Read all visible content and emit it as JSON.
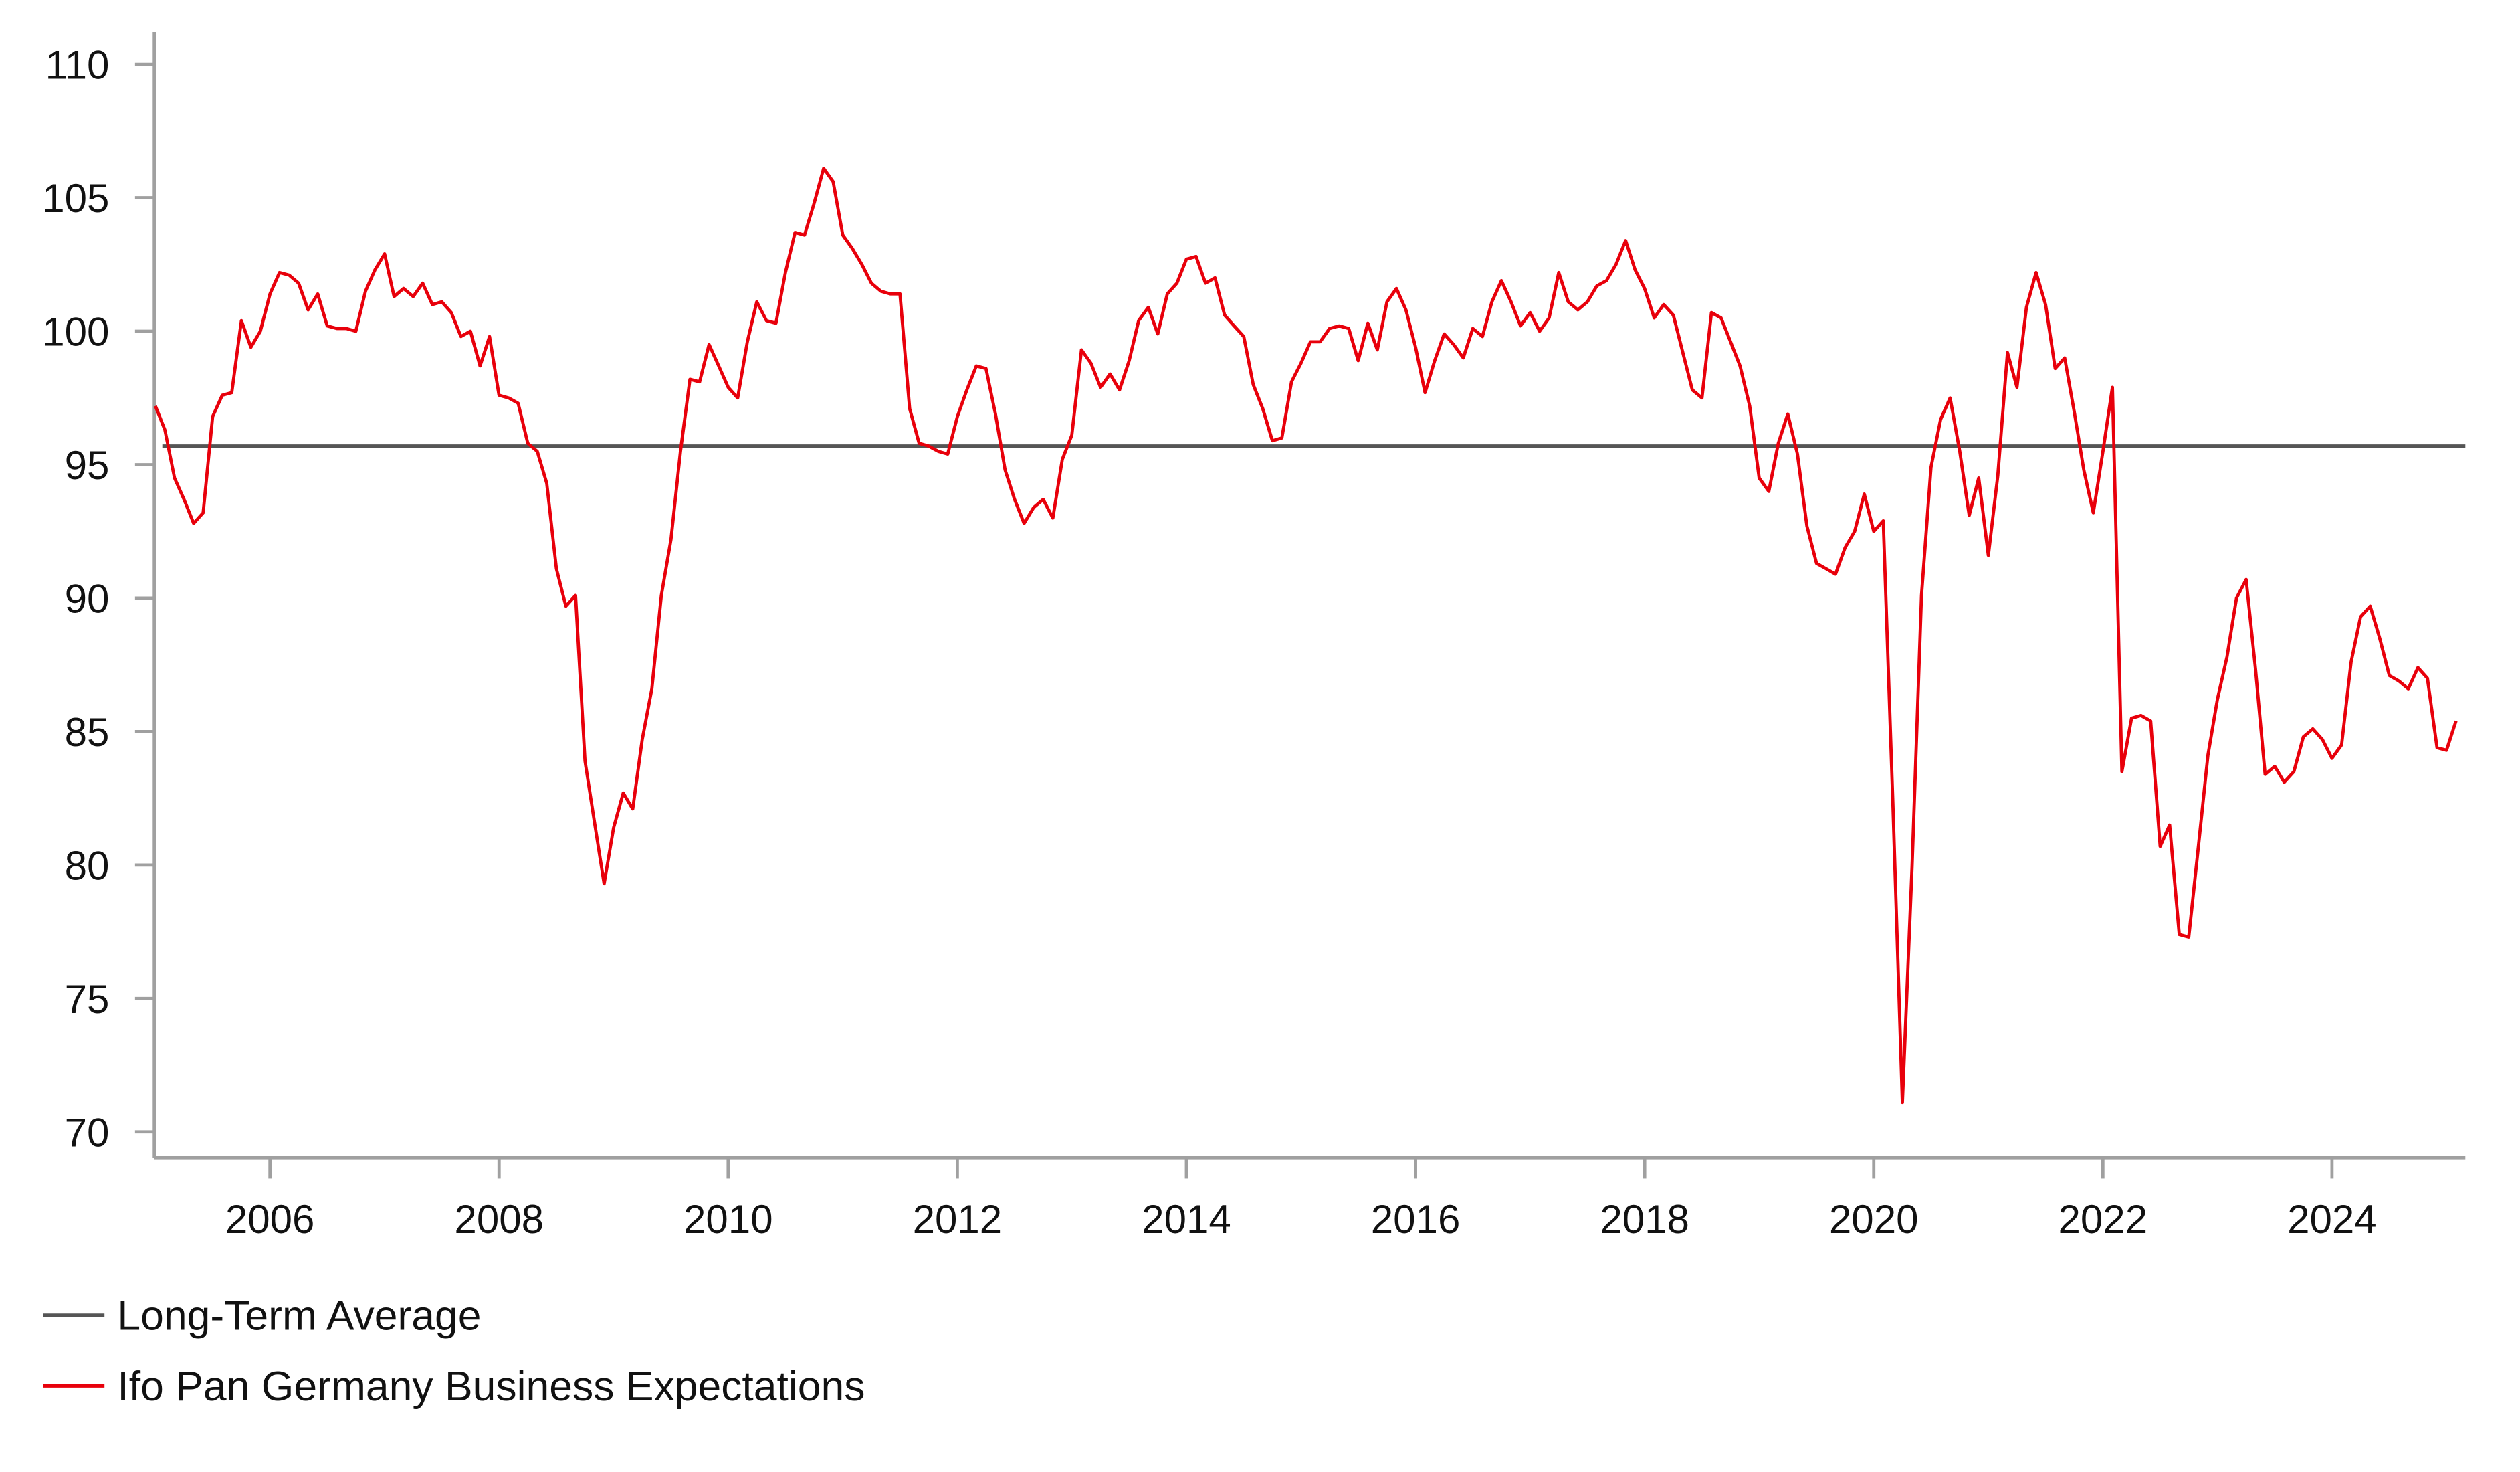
{
  "chart_data": {
    "type": "line",
    "title": "",
    "xlabel": "",
    "ylabel": "",
    "ylim": [
      70,
      110
    ],
    "xlim": [
      2005.0,
      2025.15
    ],
    "yticks": [
      "70",
      "75",
      "80",
      "85",
      "90",
      "95",
      "100",
      "105",
      "110"
    ],
    "xticks": [
      "2006",
      "2008",
      "2010",
      "2012",
      "2014",
      "2016",
      "2018",
      "2020",
      "2022",
      "2024"
    ],
    "grid": false,
    "legend_placement": "bottom-left",
    "series": [
      {
        "name": "Long-Term Average",
        "color": "#555555",
        "value": 95.7
      },
      {
        "name": "Ifo Pan Germany Business Expectations",
        "color": "#e8000b",
        "start": "2005-01",
        "frequency": "monthly",
        "values": [
          97.2,
          96.3,
          94.5,
          93.7,
          92.8,
          93.2,
          96.8,
          97.6,
          97.7,
          100.4,
          99.4,
          100.0,
          101.4,
          102.2,
          102.1,
          101.8,
          100.8,
          101.4,
          100.2,
          100.1,
          100.1,
          100.0,
          101.5,
          102.3,
          102.9,
          101.3,
          101.6,
          101.3,
          101.8,
          101.0,
          101.1,
          100.7,
          99.8,
          100.0,
          98.7,
          99.8,
          97.6,
          97.5,
          97.3,
          95.8,
          95.5,
          94.3,
          91.1,
          89.7,
          90.1,
          83.9,
          81.6,
          79.3,
          81.4,
          82.7,
          82.1,
          84.7,
          86.6,
          90.1,
          92.2,
          95.5,
          98.2,
          98.1,
          99.5,
          98.7,
          97.9,
          97.5,
          99.6,
          101.1,
          100.4,
          100.3,
          102.2,
          103.7,
          103.6,
          104.8,
          106.1,
          105.6,
          103.6,
          103.1,
          102.5,
          101.8,
          101.5,
          101.4,
          101.4,
          97.1,
          95.8,
          95.7,
          95.5,
          95.4,
          96.8,
          97.8,
          98.7,
          98.6,
          96.9,
          94.8,
          93.7,
          92.8,
          93.4,
          93.7,
          93.0,
          95.2,
          96.1,
          99.3,
          98.8,
          97.9,
          98.4,
          97.8,
          98.9,
          100.4,
          100.9,
          99.9,
          101.4,
          101.8,
          102.7,
          102.8,
          101.8,
          102.0,
          100.6,
          100.2,
          99.8,
          98.0,
          97.1,
          95.9,
          96.0,
          98.1,
          98.8,
          99.6,
          99.6,
          100.1,
          100.2,
          100.1,
          98.9,
          100.3,
          99.3,
          101.1,
          101.6,
          100.8,
          99.4,
          97.7,
          98.9,
          99.9,
          99.5,
          99.0,
          100.1,
          99.8,
          101.1,
          101.9,
          101.1,
          100.2,
          100.7,
          100.0,
          100.5,
          102.2,
          101.1,
          100.8,
          101.1,
          101.7,
          101.9,
          102.5,
          103.4,
          102.3,
          101.6,
          100.5,
          101.0,
          100.6,
          99.2,
          97.8,
          97.5,
          100.7,
          100.5,
          99.6,
          98.7,
          97.2,
          94.5,
          94.0,
          95.8,
          96.9,
          95.4,
          92.7,
          91.3,
          91.1,
          90.9,
          91.9,
          92.5,
          93.9,
          92.5,
          92.9,
          82.3,
          71.1,
          79.9,
          90.1,
          94.9,
          96.7,
          97.5,
          95.5,
          93.1,
          94.5,
          91.6,
          94.6,
          99.2,
          97.9,
          100.9,
          102.2,
          101.0,
          98.6,
          99.0,
          97.0,
          94.8,
          93.2,
          95.5,
          97.9,
          83.5,
          85.5,
          85.6,
          85.4,
          80.7,
          81.5,
          77.4,
          77.3,
          80.7,
          84.1,
          86.2,
          87.8,
          90.0,
          90.7,
          87.3,
          83.4,
          83.7,
          83.1,
          83.5,
          84.8,
          85.1,
          84.7,
          84.0,
          84.5,
          87.6,
          89.3,
          89.7,
          88.5,
          87.1,
          86.9,
          86.6,
          87.4,
          87.0,
          84.4,
          84.3,
          85.4
        ]
      }
    ]
  }
}
